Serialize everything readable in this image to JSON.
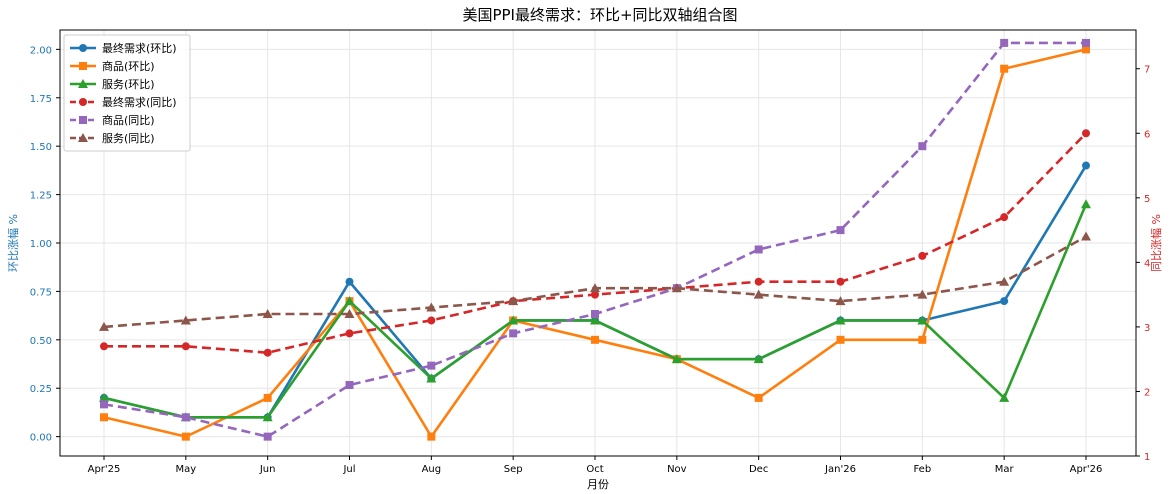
{
  "chart_data": {
    "type": "line",
    "title": "美国PPI最终需求：环比+同比双轴组合图",
    "xlabel": "月份",
    "ylabel_left": "环比涨幅 %",
    "ylabel_right": "同比涨幅 %",
    "categories": [
      "Apr'25",
      "May",
      "Jun",
      "Jul",
      "Aug",
      "Sep",
      "Oct",
      "Nov",
      "Dec",
      "Jan'26",
      "Feb",
      "Mar",
      "Apr'26"
    ],
    "ylim_left": [
      -0.1,
      2.1
    ],
    "yticks_left": [
      "0.00",
      "0.25",
      "0.50",
      "0.75",
      "1.00",
      "1.25",
      "1.50",
      "1.75",
      "2.00"
    ],
    "ylim_right": [
      1,
      7.6
    ],
    "yticks_right": [
      "1",
      "2",
      "3",
      "4",
      "5",
      "6",
      "7"
    ],
    "grid": true,
    "legend_position": "top-left",
    "colors": {
      "left_axis": "#1f77b4",
      "right_axis": "#d62728"
    },
    "series": [
      {
        "name": "最终需求(环比)",
        "axis": "left",
        "color": "#1f77b4",
        "dashed": false,
        "marker": "circle",
        "values": [
          0.2,
          0.1,
          0.1,
          0.8,
          0.3,
          0.6,
          0.6,
          0.4,
          0.4,
          0.6,
          0.6,
          0.7,
          1.4
        ]
      },
      {
        "name": "商品(环比)",
        "axis": "left",
        "color": "#ff7f0e",
        "dashed": false,
        "marker": "square",
        "values": [
          0.1,
          0.0,
          0.2,
          0.7,
          0.0,
          0.6,
          0.5,
          0.4,
          0.2,
          0.5,
          0.5,
          1.9,
          2.0
        ]
      },
      {
        "name": "服务(环比)",
        "axis": "left",
        "color": "#2ca02c",
        "dashed": false,
        "marker": "triangle",
        "values": [
          0.2,
          0.1,
          0.1,
          0.7,
          0.3,
          0.6,
          0.6,
          0.4,
          0.4,
          0.6,
          0.6,
          0.2,
          1.2
        ]
      },
      {
        "name": "最终需求(同比)",
        "axis": "right",
        "color": "#d62728",
        "dashed": true,
        "marker": "circle",
        "values": [
          2.7,
          2.7,
          2.6,
          2.9,
          3.1,
          3.4,
          3.5,
          3.6,
          3.7,
          3.7,
          4.1,
          4.7,
          6.0
        ]
      },
      {
        "name": "商品(同比)",
        "axis": "right",
        "color": "#9467bd",
        "dashed": true,
        "marker": "square",
        "values": [
          1.8,
          1.6,
          1.3,
          2.1,
          2.4,
          2.9,
          3.2,
          3.6,
          4.2,
          4.5,
          5.8,
          7.4,
          7.4
        ]
      },
      {
        "name": "服务(同比)",
        "axis": "right",
        "color": "#8c564b",
        "dashed": true,
        "marker": "triangle",
        "values": [
          3.0,
          3.1,
          3.2,
          3.2,
          3.3,
          3.4,
          3.6,
          3.6,
          3.5,
          3.4,
          3.5,
          3.7,
          4.4
        ]
      }
    ]
  }
}
